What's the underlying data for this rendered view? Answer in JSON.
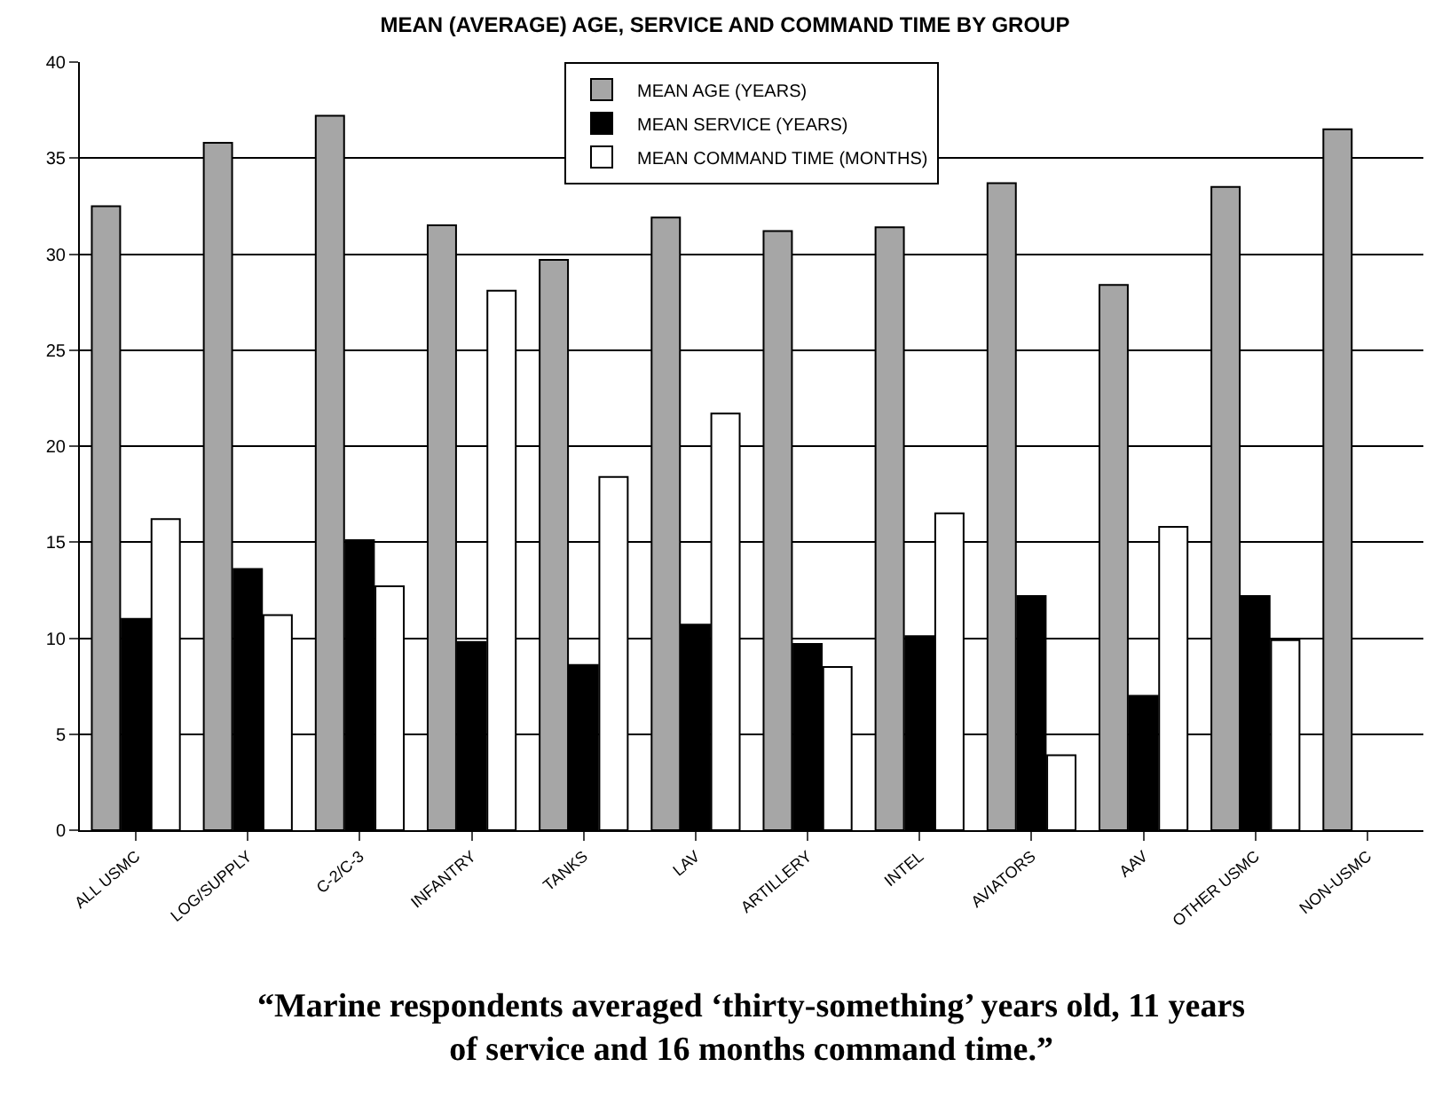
{
  "chart_data": {
    "type": "bar",
    "title": "MEAN (AVERAGE) AGE, SERVICE AND COMMAND TIME BY GROUP",
    "categories": [
      "ALL USMC",
      "LOG/SUPPLY",
      "C-2/C-3",
      "INFANTRY",
      "TANKS",
      "LAV",
      "ARTILLERY",
      "INTEL",
      "AVIATORS",
      "AAV",
      "OTHER USMC",
      "NON-USMC"
    ],
    "series": [
      {
        "name": "MEAN AGE (YEARS)",
        "color": "#a6a6a6",
        "values": [
          32.5,
          35.8,
          37.2,
          31.5,
          29.7,
          31.9,
          31.2,
          31.4,
          33.7,
          28.4,
          33.5,
          36.5
        ]
      },
      {
        "name": "MEAN SERVICE (YEARS)",
        "color": "#000000",
        "values": [
          11,
          13.6,
          15.1,
          9.8,
          8.6,
          10.7,
          9.7,
          10.1,
          12.2,
          7,
          12.2,
          null
        ]
      },
      {
        "name": "MEAN COMMAND TIME (MONTHS)",
        "color": "#ffffff",
        "values": [
          16.2,
          11.2,
          12.7,
          28.1,
          18.4,
          21.7,
          8.5,
          16.5,
          3.9,
          15.8,
          9.9,
          null
        ]
      }
    ],
    "ylim": [
      0,
      40
    ],
    "yticks": [
      0,
      5,
      10,
      15,
      20,
      25,
      30,
      35,
      40
    ],
    "grid": "y",
    "legend": "top",
    "annotations": [
      "“Marine respondents averaged ‘thirty-something’ years old, 11 years of service and 16 months command time.”"
    ]
  }
}
